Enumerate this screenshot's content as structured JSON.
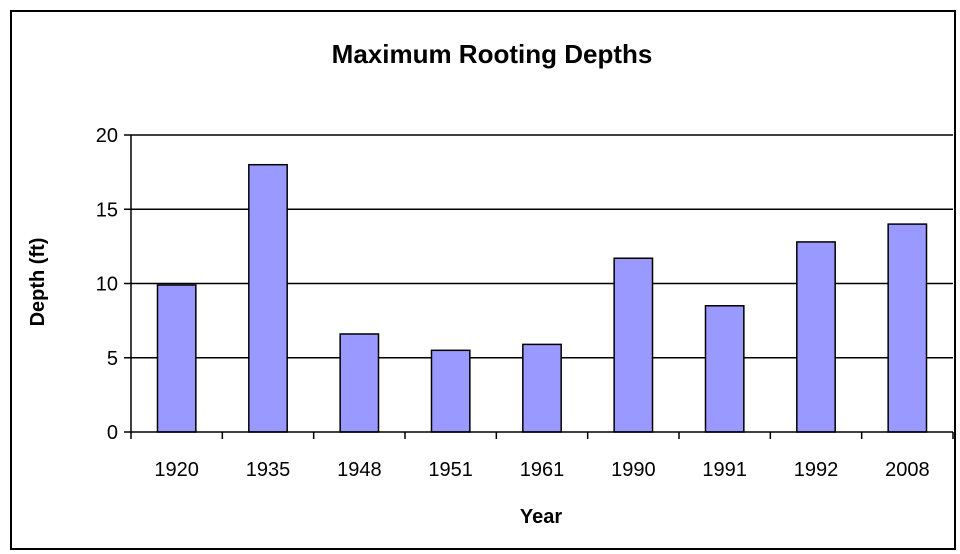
{
  "chart_data": {
    "type": "bar",
    "title": "Maximum Rooting Depths",
    "xlabel": "Year",
    "ylabel": "Depth (ft)",
    "categories": [
      "1920",
      "1935",
      "1948",
      "1951",
      "1961",
      "1990",
      "1991",
      "1992",
      "2008"
    ],
    "values": [
      9.9,
      18,
      6.6,
      5.5,
      5.9,
      11.7,
      8.5,
      12.8,
      14
    ],
    "ylim": [
      0,
      20
    ],
    "yticks": [
      0,
      5,
      10,
      15,
      20
    ],
    "grid": "horizontal",
    "legend": "none",
    "colors": {
      "bar_fill": "#9999ff",
      "bar_stroke": "#000000",
      "gridline": "#000000"
    }
  }
}
